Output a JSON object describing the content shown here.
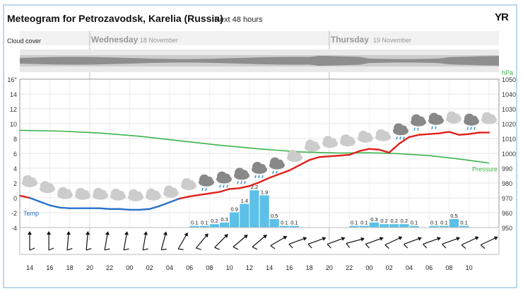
{
  "header": {
    "title": "Meteogram for Petrozavodsk, Karelia (Russia)",
    "subtitle": "Next 48 hours",
    "brand": "YR"
  },
  "days": [
    {
      "name": "Wednesday",
      "date": "18 November"
    },
    {
      "name": "Thursday",
      "date": "19 November"
    }
  ],
  "labels": {
    "cloud_cover": "Cloud cover",
    "temp": "Temp",
    "pressure": "Pressure",
    "temp_unit": "°",
    "hpa": "hPa"
  },
  "colors": {
    "frame": "#b9d9ee",
    "temp_warm": "#e0201b",
    "temp_cold": "#2a72c9",
    "pressure": "#3cb44b",
    "precip": "#5cc0e8",
    "cloud": "#555555"
  },
  "chart_data": {
    "type": "line",
    "x_hours": [
      "14",
      "16",
      "18",
      "20",
      "22",
      "00",
      "02",
      "04",
      "06",
      "08",
      "10",
      "12",
      "14",
      "16",
      "18",
      "20",
      "22",
      "00",
      "02",
      "04",
      "06",
      "08",
      "10"
    ],
    "temperature": {
      "ylim": [
        -4,
        16
      ],
      "ticks": [
        16,
        14,
        12,
        10,
        8,
        6,
        4,
        2,
        0,
        -2,
        -4
      ],
      "x": [
        0,
        2,
        4,
        6,
        8,
        10,
        12,
        14,
        16,
        18,
        20,
        22,
        24,
        26,
        28,
        30,
        32,
        34,
        36,
        38,
        40,
        42,
        44,
        46,
        48,
        50,
        52,
        54,
        56,
        58,
        60,
        62,
        64,
        66,
        68,
        70,
        72,
        74,
        76,
        78,
        80,
        82,
        84,
        86,
        88,
        90,
        92,
        94
      ],
      "values": [
        0.3,
        0,
        -0.5,
        -1,
        -1.3,
        -1.4,
        -1.4,
        -1.4,
        -1.4,
        -1.5,
        -1.5,
        -1.6,
        -1.6,
        -1.5,
        -1.1,
        -0.6,
        -0.1,
        0.2,
        0.4,
        0.6,
        0.8,
        1.2,
        1.3,
        1.6,
        2.1,
        2.7,
        3.2,
        3.7,
        4.4,
        5.1,
        5.5,
        5.6,
        5.7,
        5.8,
        6.3,
        6.6,
        6.5,
        6.1,
        7.3,
        8.2,
        8.5,
        8.6,
        8.7,
        8.9,
        8.5,
        8.6,
        8.8,
        8.8
      ]
    },
    "pressure": {
      "ylim": [
        950,
        1050
      ],
      "ticks": [
        1050,
        1040,
        1030,
        1020,
        1010,
        1000,
        990,
        980,
        970,
        960,
        950
      ],
      "x": [
        0,
        8,
        16,
        24,
        32,
        40,
        48,
        56,
        64,
        70,
        76,
        82,
        88,
        94
      ],
      "values": [
        1015.5,
        1015,
        1013.7,
        1011.5,
        1008.5,
        1005.5,
        1003,
        1001,
        1000.2,
        1000.4,
        999.8,
        998.5,
        996.2,
        993.5
      ]
    },
    "precipitation": {
      "x": [
        0,
        2,
        4,
        6,
        8,
        10,
        12,
        14,
        16,
        18,
        20,
        22,
        24,
        26,
        28,
        30,
        32,
        34,
        36,
        38,
        40,
        42,
        44,
        46,
        48,
        50,
        52,
        54,
        56,
        58,
        60,
        62,
        64,
        66,
        68,
        70,
        72,
        74,
        76,
        78,
        80,
        82,
        84,
        86,
        88,
        90,
        92,
        94
      ],
      "values": [
        0,
        0,
        0,
        0,
        0,
        0,
        0,
        0,
        0,
        0,
        0,
        0,
        0,
        0,
        0,
        0,
        0,
        0.1,
        0.1,
        0.2,
        0.3,
        0.9,
        1.4,
        2.2,
        1.9,
        0.5,
        0.1,
        0.1,
        0,
        0,
        0,
        0,
        0,
        0.1,
        0.1,
        0.3,
        0.2,
        0.2,
        0.2,
        0.1,
        0,
        0.1,
        0.1,
        0.5,
        0.1,
        0,
        0,
        0
      ]
    },
    "symbols": [
      "cloud",
      "cloud",
      "cloud",
      "cloud",
      "cloud",
      "cloud",
      "cloud",
      "cloud",
      "cloud",
      "cloud",
      "rain-light",
      "rain",
      "rain",
      "rain",
      "rain-light",
      "cloud",
      "cloud",
      "cloud",
      "cloud",
      "cloud",
      "cloud",
      "rain",
      "rain-light",
      "rain-light",
      "cloud",
      "rain",
      "cloud"
    ],
    "wind_directions": [
      180,
      180,
      185,
      185,
      190,
      190,
      190,
      195,
      210,
      220,
      225,
      230,
      230,
      240,
      250,
      250,
      250,
      255,
      250,
      245,
      250,
      250,
      250,
      245,
      245
    ],
    "xlabel": "",
    "ylabel": "",
    "grid": true
  }
}
